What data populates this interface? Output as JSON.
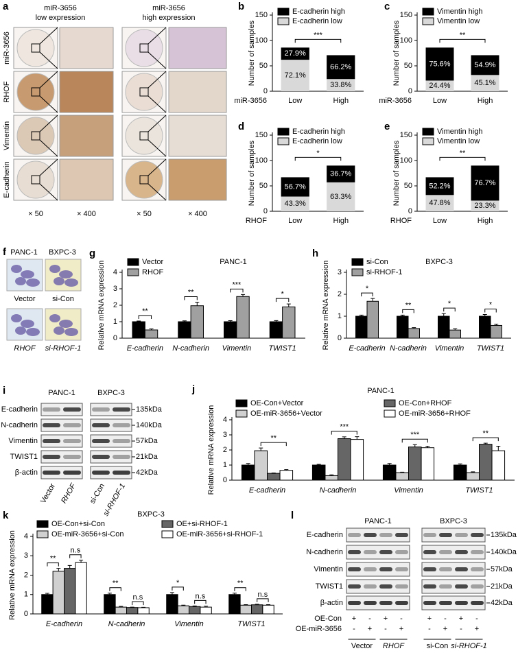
{
  "image_panels": {
    "a": {
      "panel": "a",
      "columns": [
        [
          "miR-3656",
          "low expression"
        ],
        [
          "miR-3656",
          "high expression"
        ]
      ],
      "rows": [
        "miR-3656",
        "RHOF",
        "Vimentin",
        "E-cadherin"
      ],
      "magnifications": [
        "× 50",
        "× 400",
        "× 50",
        "× 400"
      ]
    },
    "f": {
      "panel": "f",
      "cells": [
        "PANC-1",
        "BXPC-3",
        "Vector",
        "si-Con",
        "RHOF",
        "si-RHOF-1"
      ]
    },
    "i": {
      "panel": "i",
      "cell_lines": [
        "PANC-1",
        "BXPC-3"
      ],
      "proteins": [
        "E-cadherin",
        "N-cadherin",
        "Vimentin",
        "TWIST1",
        "β-actin"
      ],
      "sizes": [
        "135kDa",
        "140kDa",
        "57kDa",
        "21kDa",
        "42kDa"
      ],
      "lanes": [
        "Vector",
        "RHOF",
        "si-Con",
        "si-RHOF-1"
      ]
    },
    "l": {
      "panel": "l",
      "cell_lines": [
        "PANC-1",
        "BXPC-3"
      ],
      "proteins": [
        "E-cadherin",
        "N-cadherin",
        "Vimentin",
        "TWIST1",
        "β-actin"
      ],
      "sizes": [
        "135kDa",
        "140kDa",
        "57kDa",
        "21kDa",
        "42kDa"
      ],
      "treatments": [
        {
          "name": "OE-Con",
          "signs": [
            "+",
            "-",
            "+",
            "-",
            "+",
            "-",
            "+",
            "-"
          ]
        },
        {
          "name": "OE-miR-3656",
          "signs": [
            "-",
            "+",
            "-",
            "+",
            "-",
            "+",
            "-",
            "+"
          ]
        }
      ],
      "groups": [
        "Vector",
        "RHOF",
        "si-Con",
        "si-RHOF-1"
      ]
    }
  },
  "chart_data": [
    {
      "panel": "b",
      "type": "stacked_bar",
      "xlabel": "miR-3656",
      "ylabel": "Number of samples",
      "categories": [
        "Low",
        "High"
      ],
      "series": [
        {
          "name": "E-cadherin low",
          "color": "#d9d9d9",
          "values": [
            62,
            24
          ],
          "percent_labels": [
            "72.1%",
            "33.8%"
          ]
        },
        {
          "name": "E-cadherin high",
          "color": "#000000",
          "values": [
            24,
            47
          ],
          "percent_labels": [
            "27.9%",
            "66.2%"
          ]
        }
      ],
      "significance": "***",
      "ylim": [
        0,
        150
      ],
      "yticks": [
        0,
        50,
        100,
        150
      ]
    },
    {
      "panel": "c",
      "type": "stacked_bar",
      "xlabel": "miR-3656",
      "ylabel": "Number of samples",
      "categories": [
        "Low",
        "High"
      ],
      "series": [
        {
          "name": "Vimentin low",
          "color": "#d9d9d9",
          "values": [
            21,
            32
          ],
          "percent_labels": [
            "24.4%",
            "45.1%"
          ]
        },
        {
          "name": "Vimentin high",
          "color": "#000000",
          "values": [
            65,
            39
          ],
          "percent_labels": [
            "75.6%",
            "54.9%"
          ]
        }
      ],
      "significance": "**",
      "ylim": [
        0,
        150
      ],
      "yticks": [
        0,
        50,
        100,
        150
      ]
    },
    {
      "panel": "d",
      "type": "stacked_bar",
      "xlabel": "RHOF",
      "ylabel": "Number of samples",
      "categories": [
        "Low",
        "High"
      ],
      "series": [
        {
          "name": "E-cadherin low",
          "color": "#d9d9d9",
          "values": [
            29,
            57
          ],
          "percent_labels": [
            "43.3%",
            "63.3%"
          ]
        },
        {
          "name": "E-cadherin high",
          "color": "#000000",
          "values": [
            38,
            33
          ],
          "percent_labels": [
            "56.7%",
            "36.7%"
          ]
        }
      ],
      "significance": "*",
      "ylim": [
        0,
        150
      ],
      "yticks": [
        0,
        50,
        100,
        150
      ]
    },
    {
      "panel": "e",
      "type": "stacked_bar",
      "xlabel": "RHOF",
      "ylabel": "Number of samples",
      "categories": [
        "Low",
        "High"
      ],
      "series": [
        {
          "name": "Vimentin low",
          "color": "#d9d9d9",
          "values": [
            32,
            21
          ],
          "percent_labels": [
            "47.8%",
            "23.3%"
          ]
        },
        {
          "name": "Vimentin high",
          "color": "#000000",
          "values": [
            35,
            69
          ],
          "percent_labels": [
            "52.2%",
            "76.7%"
          ]
        }
      ],
      "significance": "**",
      "ylim": [
        0,
        150
      ],
      "yticks": [
        0,
        50,
        100,
        150
      ]
    },
    {
      "panel": "g",
      "type": "bar",
      "title": "PANC-1",
      "ylabel": "Relative mRNA expression",
      "categories": [
        "E-cadherin",
        "N-cadherin",
        "Vimentin",
        "TWIST1"
      ],
      "series": [
        {
          "name": "Vector",
          "color": "#000000",
          "values": [
            1,
            1,
            1,
            1
          ],
          "errors": [
            0.04,
            0.05,
            0.06,
            0.07
          ]
        },
        {
          "name": "RHOF",
          "color": "#a0a0a0",
          "values": [
            0.5,
            1.97,
            2.53,
            1.9
          ],
          "errors": [
            0.06,
            0.22,
            0.12,
            0.18
          ]
        }
      ],
      "significance": [
        "**",
        "**",
        "***",
        "*"
      ],
      "ylim": [
        0,
        4
      ],
      "yticks": [
        0,
        1,
        2,
        3,
        4
      ]
    },
    {
      "panel": "h",
      "type": "bar",
      "title": "BXPC-3",
      "ylabel": "Relative mRNA expression",
      "categories": [
        "E-cadherin",
        "N-cadherin",
        "Vimentin",
        "TWIST1"
      ],
      "series": [
        {
          "name": "si-Con",
          "color": "#000000",
          "values": [
            1,
            1,
            1,
            1
          ],
          "errors": [
            0.05,
            0.05,
            0.12,
            0.08
          ]
        },
        {
          "name": "si-RHOF-1",
          "color": "#a0a0a0",
          "values": [
            1.68,
            0.44,
            0.37,
            0.58
          ],
          "errors": [
            0.13,
            0.04,
            0.06,
            0.06
          ]
        }
      ],
      "significance": [
        "*",
        "**",
        "*",
        "*"
      ],
      "ylim": [
        0,
        3
      ],
      "yticks": [
        0,
        1,
        2,
        3
      ]
    },
    {
      "panel": "j",
      "type": "bar",
      "title": "PANC-1",
      "ylabel": "Relative mRNA expression",
      "categories": [
        "E-cadherin",
        "N-cadherin",
        "Vimentin",
        "TWIST1"
      ],
      "series": [
        {
          "name": "OE-Con+Vector",
          "color": "#000000",
          "values": [
            1,
            1,
            1,
            1
          ],
          "errors": [
            0.1,
            0.05,
            0.1,
            0.08
          ]
        },
        {
          "name": "OE-miR-3656+Vector",
          "color": "#d0d0d0",
          "values": [
            1.95,
            0.3,
            0.5,
            0.5
          ],
          "errors": [
            0.18,
            0.05,
            0.03,
            0.05
          ]
        },
        {
          "name": "OE-Con+RHOF",
          "color": "#666666",
          "values": [
            0.45,
            2.75,
            2.2,
            2.38
          ],
          "errors": [
            0.03,
            0.12,
            0.15,
            0.07
          ]
        },
        {
          "name": "OE-miR-3656+RHOF",
          "color": "#ffffff",
          "values": [
            0.65,
            2.7,
            2.15,
            1.95
          ],
          "errors": [
            0.05,
            0.18,
            0.1,
            0.3
          ]
        }
      ],
      "significance": [
        "**",
        "***",
        "***",
        "**"
      ],
      "ylim": [
        0,
        4
      ],
      "yticks": [
        0,
        1,
        2,
        3,
        4
      ]
    },
    {
      "panel": "k",
      "type": "bar",
      "title": "BXPC-3",
      "ylabel": "Relative mRNA expression",
      "categories": [
        "E-cadherin",
        "N-cadherin",
        "Vimentin",
        "TWIST1"
      ],
      "series": [
        {
          "name": "OE-Con+si-Con",
          "color": "#000000",
          "values": [
            1,
            1,
            1,
            1
          ],
          "errors": [
            0.06,
            0.07,
            0.1,
            0.07
          ]
        },
        {
          "name": "OE-miR-3656+si-Con",
          "color": "#d0d0d0",
          "values": [
            2.2,
            0.35,
            0.42,
            0.45
          ],
          "errors": [
            0.15,
            0.04,
            0.03,
            0.03
          ]
        },
        {
          "name": "OE+si-RHOF-1",
          "color": "#666666",
          "values": [
            2.35,
            0.33,
            0.38,
            0.47
          ],
          "errors": [
            0.15,
            0.02,
            0.03,
            0.03
          ]
        },
        {
          "name": "OE-miR-3656+si-RHOF-1",
          "color": "#ffffff",
          "values": [
            2.65,
            0.32,
            0.35,
            0.45
          ],
          "errors": [
            0.12,
            0.02,
            0.05,
            0.03
          ]
        }
      ],
      "significance": [
        [
          "**",
          "n.s"
        ],
        [
          "**",
          "n.s"
        ],
        [
          "*",
          "n.s"
        ],
        [
          "**",
          "n.s"
        ]
      ],
      "ylim": [
        0,
        4
      ],
      "yticks": [
        0,
        1,
        2,
        3,
        4
      ]
    }
  ]
}
